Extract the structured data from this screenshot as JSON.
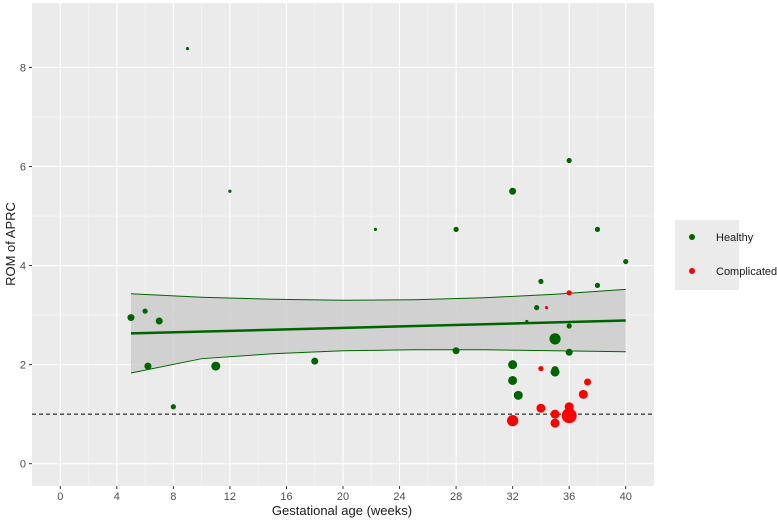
{
  "chart_data": {
    "type": "scatter",
    "xlabel": "Gestational age (weeks)",
    "ylabel": "ROM of APRC",
    "xlim": [
      -2,
      42
    ],
    "ylim": [
      -0.45,
      9.3
    ],
    "x_ticks": [
      0,
      4,
      8,
      12,
      16,
      20,
      24,
      28,
      32,
      36,
      40
    ],
    "y_ticks": [
      0,
      2,
      4,
      6,
      8
    ],
    "reference_line": {
      "y": 1,
      "style": "dashed"
    },
    "grid": true,
    "legend_placement": "right",
    "series": [
      {
        "name": "Healthy",
        "color": "#006400",
        "points": [
          {
            "x": 5,
            "y": 2.95,
            "size": 2
          },
          {
            "x": 6,
            "y": 3.08,
            "size": 1
          },
          {
            "x": 6.2,
            "y": 1.97,
            "size": 2
          },
          {
            "x": 7,
            "y": 2.88,
            "size": 2
          },
          {
            "x": 8,
            "y": 1.15,
            "size": 1
          },
          {
            "x": 9,
            "y": 8.38,
            "size": 0
          },
          {
            "x": 11,
            "y": 1.97,
            "size": 3
          },
          {
            "x": 12,
            "y": 5.5,
            "size": 0
          },
          {
            "x": 18,
            "y": 2.07,
            "size": 2
          },
          {
            "x": 22.3,
            "y": 4.73,
            "size": 0
          },
          {
            "x": 28,
            "y": 4.73,
            "size": 1
          },
          {
            "x": 28,
            "y": 2.28,
            "size": 2
          },
          {
            "x": 32,
            "y": 5.5,
            "size": 2
          },
          {
            "x": 32,
            "y": 2.0,
            "size": 3
          },
          {
            "x": 32,
            "y": 1.68,
            "size": 3
          },
          {
            "x": 32.4,
            "y": 1.38,
            "size": 3
          },
          {
            "x": 33,
            "y": 2.87,
            "size": 0
          },
          {
            "x": 33.7,
            "y": 3.15,
            "size": 1
          },
          {
            "x": 34,
            "y": 3.68,
            "size": 1
          },
          {
            "x": 35,
            "y": 2.52,
            "size": 4
          },
          {
            "x": 35,
            "y": 1.9,
            "size": 2
          },
          {
            "x": 35,
            "y": 1.85,
            "size": 3
          },
          {
            "x": 36,
            "y": 6.12,
            "size": 1
          },
          {
            "x": 36,
            "y": 2.78,
            "size": 1
          },
          {
            "x": 36,
            "y": 2.25,
            "size": 2
          },
          {
            "x": 38,
            "y": 4.73,
            "size": 1
          },
          {
            "x": 38,
            "y": 3.6,
            "size": 1
          },
          {
            "x": 40,
            "y": 4.08,
            "size": 1
          }
        ]
      },
      {
        "name": "Complicated",
        "color": "#ff0000",
        "points": [
          {
            "x": 32,
            "y": 0.87,
            "size": 4
          },
          {
            "x": 34,
            "y": 1.92,
            "size": 1
          },
          {
            "x": 34,
            "y": 1.12,
            "size": 3
          },
          {
            "x": 34.4,
            "y": 3.15,
            "size": 0
          },
          {
            "x": 35,
            "y": 1.0,
            "size": 3
          },
          {
            "x": 35,
            "y": 0.82,
            "size": 3
          },
          {
            "x": 36,
            "y": 3.45,
            "size": 1
          },
          {
            "x": 36,
            "y": 1.15,
            "size": 3
          },
          {
            "x": 36,
            "y": 0.97,
            "size": 5
          },
          {
            "x": 37,
            "y": 1.4,
            "size": 3
          },
          {
            "x": 37.3,
            "y": 1.65,
            "size": 2
          }
        ]
      }
    ],
    "regression": {
      "color": "#006400",
      "fit": {
        "x0": 5,
        "y0": 2.63,
        "x1": 40,
        "y1": 2.89
      },
      "ci_upper": [
        {
          "x": 5,
          "y": 3.43
        },
        {
          "x": 10,
          "y": 3.36
        },
        {
          "x": 15,
          "y": 3.32
        },
        {
          "x": 20,
          "y": 3.3
        },
        {
          "x": 25,
          "y": 3.31
        },
        {
          "x": 30,
          "y": 3.35
        },
        {
          "x": 35,
          "y": 3.42
        },
        {
          "x": 40,
          "y": 3.52
        }
      ],
      "ci_lower": [
        {
          "x": 5,
          "y": 1.83
        },
        {
          "x": 10,
          "y": 2.12
        },
        {
          "x": 15,
          "y": 2.22
        },
        {
          "x": 20,
          "y": 2.28
        },
        {
          "x": 25,
          "y": 2.3
        },
        {
          "x": 30,
          "y": 2.3
        },
        {
          "x": 35,
          "y": 2.28
        },
        {
          "x": 40,
          "y": 2.26
        }
      ]
    }
  }
}
